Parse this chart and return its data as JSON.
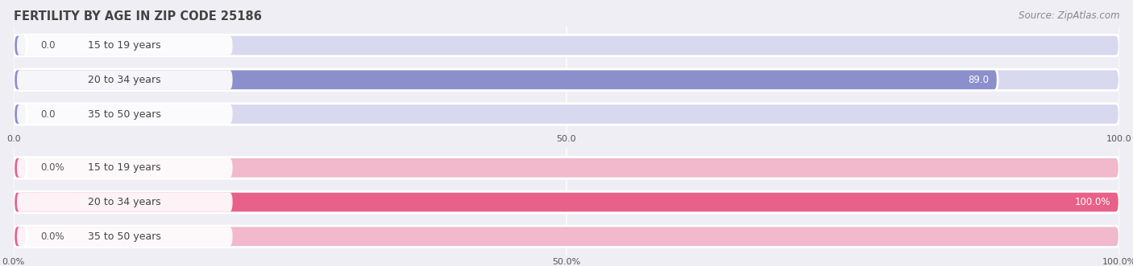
{
  "title": "FERTILITY BY AGE IN ZIP CODE 25186",
  "source": "Source: ZipAtlas.com",
  "top_chart": {
    "categories": [
      "15 to 19 years",
      "20 to 34 years",
      "35 to 50 years"
    ],
    "values": [
      0.0,
      89.0,
      0.0
    ],
    "xlim": [
      0,
      100
    ],
    "xticks": [
      0.0,
      50.0,
      100.0
    ],
    "bar_color": "#8b8fcc",
    "bar_bg_color": "#d8d9ef",
    "is_percent": false
  },
  "bottom_chart": {
    "categories": [
      "15 to 19 years",
      "20 to 34 years",
      "35 to 50 years"
    ],
    "values": [
      0.0,
      100.0,
      0.0
    ],
    "xlim": [
      0,
      100
    ],
    "xticks": [
      0.0,
      50.0,
      100.0
    ],
    "bar_color": "#e8618a",
    "bar_bg_color": "#f2b8cc",
    "is_percent": true
  },
  "bg_color": "#eeeef4",
  "title_color": "#444444",
  "source_color": "#888888",
  "title_fontsize": 10.5,
  "source_fontsize": 8.5,
  "label_fontsize": 9,
  "value_fontsize": 8.5,
  "tick_fontsize": 8
}
